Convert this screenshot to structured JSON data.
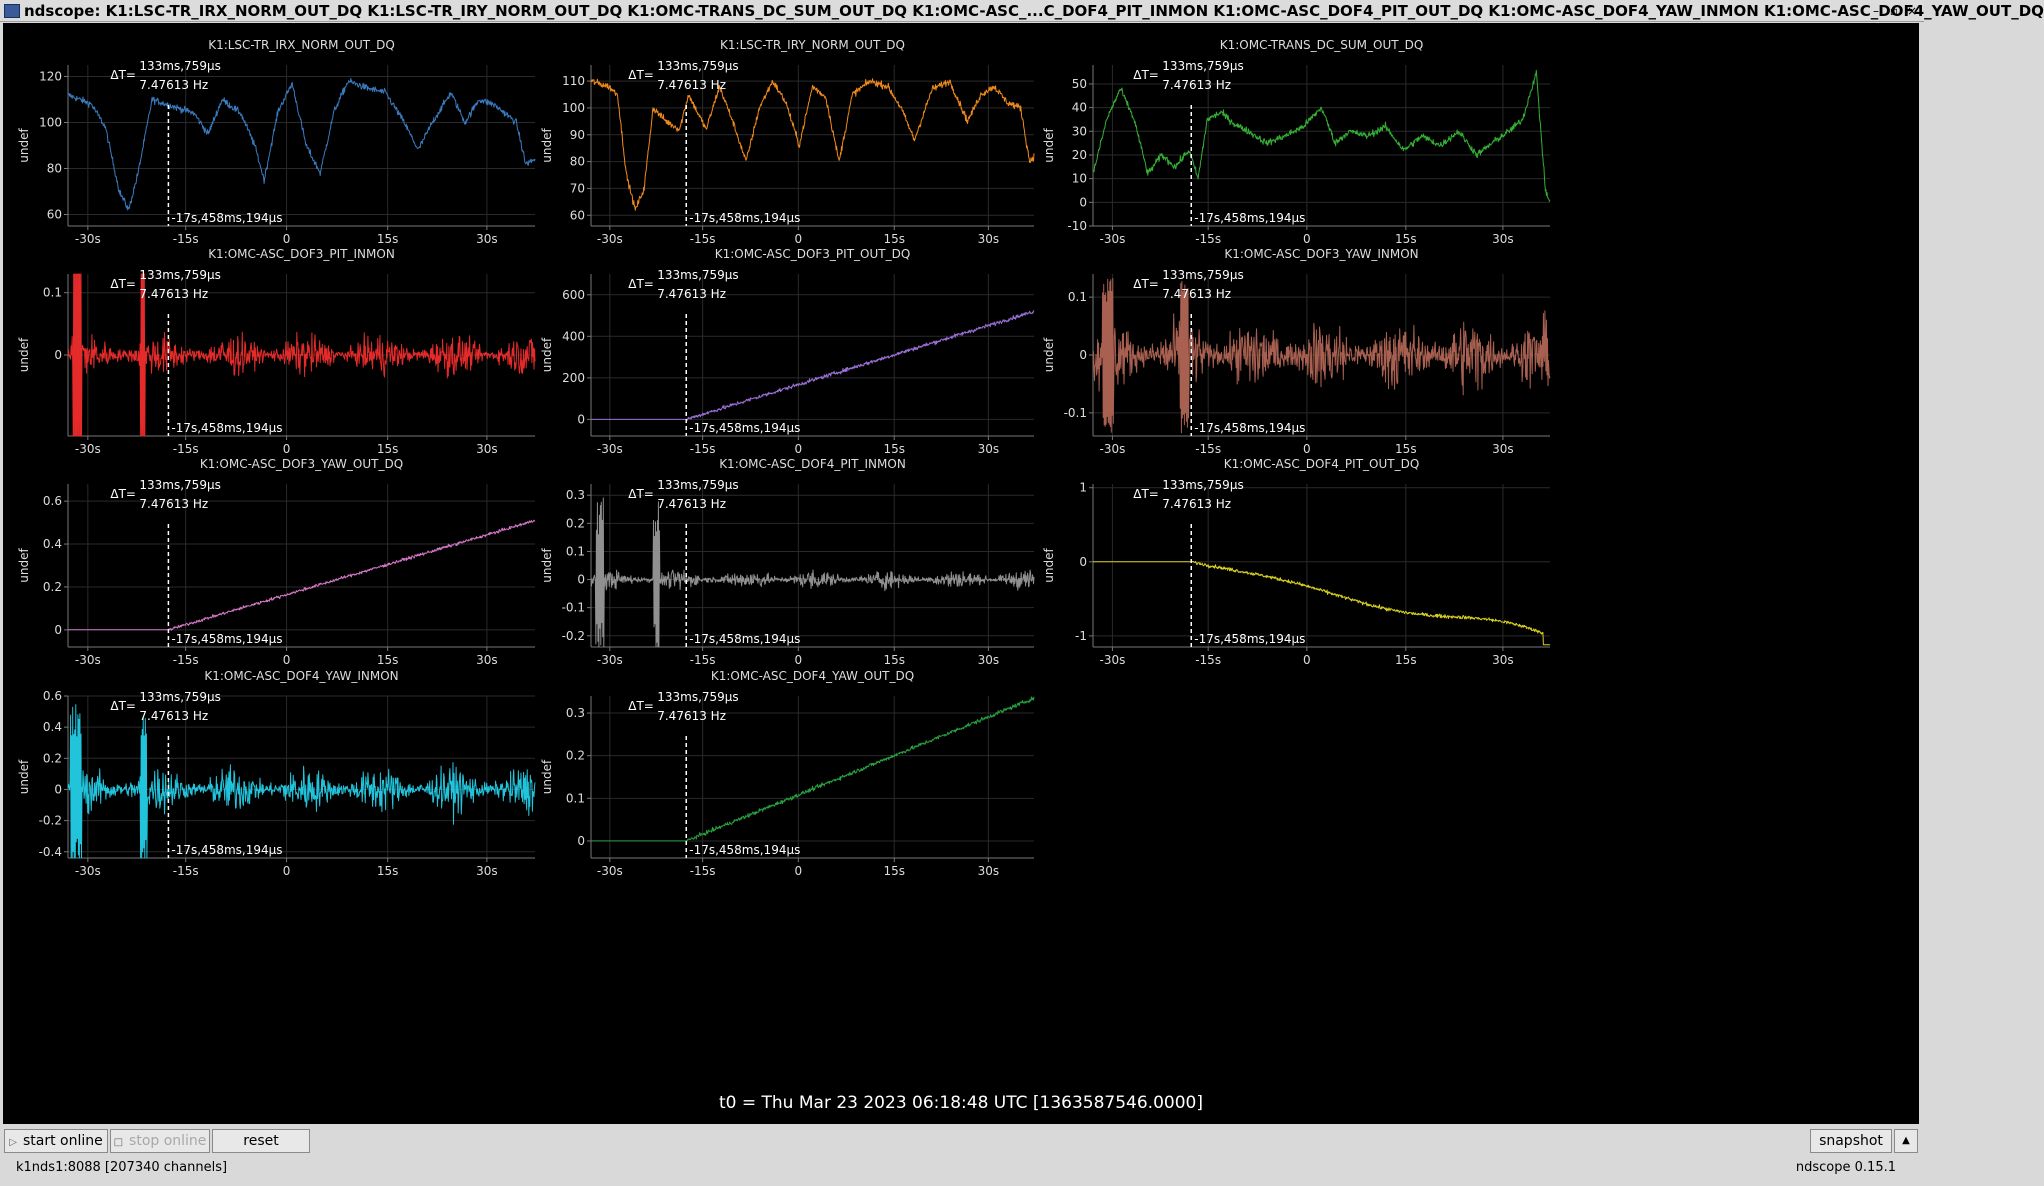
{
  "window": {
    "title": "ndscope: K1:LSC-TR_IRX_NORM_OUT_DQ K1:LSC-TR_IRY_NORM_OUT_DQ K1:OMC-TRANS_DC_SUM_OUT_DQ K1:OMC-ASC_...C_DOF4_PIT_INMON K1:OMC-ASC_DOF4_PIT_OUT_DQ K1:OMC-ASC_DOF4_YAW_INMON K1:OMC-ASC_DOF4_YAW_OUT_DQ",
    "controls": [
      "–",
      "▫",
      "×"
    ]
  },
  "cursor": {
    "delta_t": "ΔT=",
    "dt_value": "133ms,759µs",
    "freq": "7.47613 Hz",
    "t_label": "-17s,458ms,194µs"
  },
  "x_tick_labels": [
    "-30s",
    "-15s",
    "0",
    "15s",
    "30s"
  ],
  "ylabel": "undef",
  "plots": [
    {
      "title": "K1:LSC-TR_IRX_NORM_OUT_DQ",
      "color": "#3a7bbf",
      "style": "irx",
      "ylim": [
        55,
        125
      ],
      "yticks": [
        "60",
        "80",
        "100",
        "120"
      ],
      "ytick_vals": [
        60,
        80,
        100,
        120
      ]
    },
    {
      "title": "K1:LSC-TR_IRY_NORM_OUT_DQ",
      "color": "#f08a1c",
      "style": "iry",
      "ylim": [
        56,
        116
      ],
      "yticks": [
        "60",
        "70",
        "80",
        "90",
        "100",
        "110"
      ],
      "ytick_vals": [
        60,
        70,
        80,
        90,
        100,
        110
      ]
    },
    {
      "title": "K1:OMC-TRANS_DC_SUM_OUT_DQ",
      "color": "#35b035",
      "style": "dcsum",
      "ylim": [
        -10,
        58
      ],
      "yticks": [
        "-10",
        "0",
        "10",
        "20",
        "30",
        "40",
        "50"
      ],
      "ytick_vals": [
        -10,
        0,
        10,
        20,
        30,
        40,
        50
      ]
    },
    {
      "title": "K1:OMC-ASC_DOF3_PIT_INMON",
      "color": "#e52a2a",
      "style": "noise_red",
      "ylim": [
        -0.13,
        0.13
      ],
      "yticks": [
        "0.1",
        "0"
      ],
      "ytick_vals": [
        0.1,
        0
      ]
    },
    {
      "title": "K1:OMC-ASC_DOF3_PIT_OUT_DQ",
      "color": "#9a6fd6",
      "style": "ramp_up",
      "ylim": [
        -80,
        700
      ],
      "yticks": [
        "0",
        "200",
        "400",
        "600"
      ],
      "ytick_vals": [
        0,
        200,
        400,
        600
      ]
    },
    {
      "title": "K1:OMC-ASC_DOF3_YAW_INMON",
      "color": "#a86050",
      "style": "noise_brown",
      "ylim": [
        -0.14,
        0.14
      ],
      "yticks": [
        "0.1",
        "0",
        "-0.1"
      ],
      "ytick_vals": [
        0.1,
        0,
        -0.1
      ]
    },
    {
      "title": "K1:OMC-ASC_DOF3_YAW_OUT_DQ",
      "color": "#d678c8",
      "style": "ramp_pink",
      "ylim": [
        -0.08,
        0.68
      ],
      "yticks": [
        "0",
        "0.2",
        "0.4",
        "0.6"
      ],
      "ytick_vals": [
        0,
        0.2,
        0.4,
        0.6
      ]
    },
    {
      "title": "K1:OMC-ASC_DOF4_PIT_INMON",
      "color": "#909090",
      "style": "noise_gray",
      "ylim": [
        -0.24,
        0.34
      ],
      "yticks": [
        "-0.2",
        "-0.1",
        "0",
        "0.1",
        "0.2",
        "0.3"
      ],
      "ytick_vals": [
        -0.2,
        -0.1,
        0,
        0.1,
        0.2,
        0.3
      ]
    },
    {
      "title": "K1:OMC-ASC_DOF4_PIT_OUT_DQ",
      "color": "#d8d020",
      "style": "ramp_down",
      "ylim": [
        -1.15,
        1.05
      ],
      "yticks": [
        "1",
        "0",
        "-1"
      ],
      "ytick_vals": [
        1,
        0,
        -1
      ]
    },
    {
      "title": "K1:OMC-ASC_DOF4_YAW_INMON",
      "color": "#22c4dc",
      "style": "noise_cyan",
      "ylim": [
        -0.44,
        0.6
      ],
      "yticks": [
        "0.6",
        "0.4",
        "0.2",
        "0",
        "-0.2",
        "-0.4"
      ],
      "ytick_vals": [
        0.6,
        0.4,
        0.2,
        0,
        -0.2,
        -0.4
      ]
    },
    {
      "title": "K1:OMC-ASC_DOF4_YAW_OUT_DQ",
      "color": "#28a040",
      "style": "ramp_green",
      "ylim": [
        -0.04,
        0.34
      ],
      "yticks": [
        "0",
        "0.1",
        "0.2",
        "0.3"
      ],
      "ytick_vals": [
        0,
        0.1,
        0.2,
        0.3
      ]
    }
  ],
  "t0": "t0 = Thu Mar 23 2023 06:18:48 UTC [1363587546.0000]",
  "buttons": {
    "start": "start online",
    "stop": "stop online",
    "reset": "reset",
    "snapshot": "snapshot"
  },
  "status": {
    "server": "k1nds1:8088  [207340 channels]",
    "version": "ndscope 0.15.1"
  }
}
